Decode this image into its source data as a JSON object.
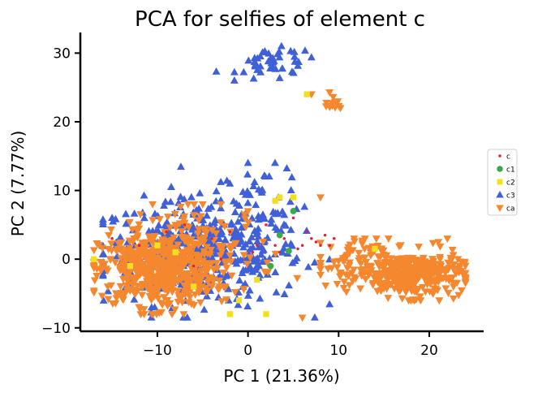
{
  "chart_data": {
    "type": "scatter",
    "title": "PCA for selfies of element c",
    "xlabel": "PC 1 (21.36%)",
    "ylabel": "PC 2 (7.77%)",
    "xlim": [
      -18.5,
      26
    ],
    "ylim": [
      -10.5,
      33
    ],
    "xticks": [
      -10,
      0,
      10,
      20
    ],
    "yticks": [
      -10,
      0,
      10,
      20,
      30
    ],
    "xtick_labels": [
      "−10",
      "0",
      "10",
      "20"
    ],
    "ytick_labels": [
      "−10",
      "0",
      "10",
      "20",
      "30"
    ],
    "grid": false,
    "legend_position": "right",
    "series": [
      {
        "name": "c",
        "marker": "dot",
        "color": "#e0203a",
        "points": [
          [
            -15,
            3
          ],
          [
            -12,
            2
          ],
          [
            -9,
            4
          ],
          [
            -7,
            5
          ],
          [
            -4,
            3
          ],
          [
            -2,
            4
          ],
          [
            1,
            2
          ],
          [
            2,
            5
          ],
          [
            3,
            2
          ],
          [
            4,
            3
          ],
          [
            5,
            6
          ],
          [
            6,
            2
          ],
          [
            6.5,
            4
          ],
          [
            7,
            3
          ],
          [
            7.5,
            2.5
          ],
          [
            8,
            2
          ],
          [
            8.5,
            3.5
          ],
          [
            9,
            2
          ],
          [
            9.5,
            3
          ],
          [
            5.5,
            1.5
          ],
          [
            3.5,
            1
          ],
          [
            -6,
            -1
          ],
          [
            -3,
            0
          ],
          [
            0.5,
            1
          ]
        ]
      },
      {
        "name": "c1",
        "marker": "circle",
        "color": "#3aab4b",
        "points": [
          [
            3.5,
            3.5
          ],
          [
            4.5,
            1.2
          ],
          [
            5,
            7
          ],
          [
            2.5,
            -1
          ]
        ]
      },
      {
        "name": "c2",
        "marker": "square",
        "color": "#f2e01c",
        "points": [
          [
            -17,
            0
          ],
          [
            -13,
            -1
          ],
          [
            -10,
            2
          ],
          [
            -6,
            -4
          ],
          [
            -2,
            -8
          ],
          [
            2,
            -8
          ],
          [
            3,
            8.5
          ],
          [
            3.5,
            9
          ],
          [
            5,
            9
          ],
          [
            6.5,
            24
          ],
          [
            14,
            1.5
          ],
          [
            -1,
            -6
          ],
          [
            1,
            -3
          ],
          [
            -8,
            1
          ]
        ]
      },
      {
        "name": "c3",
        "marker": "triangle",
        "color": "#4060d8",
        "clusters": [
          {
            "x": -5,
            "y": 1,
            "sx": 5.5,
            "sy": 3.8,
            "n": 420,
            "xmin": -16,
            "xmax": 9,
            "ymin": -8.5,
            "ymax": 14
          },
          {
            "x": 3,
            "y": 28.5,
            "sx": 2.2,
            "sy": 1.3,
            "n": 45,
            "xmin": -1.5,
            "xmax": 7,
            "ymin": 26,
            "ymax": 31
          },
          {
            "x": 1.5,
            "y": 9,
            "sx": 2.5,
            "sy": 2.2,
            "n": 40,
            "xmin": -3,
            "xmax": 8,
            "ymin": 5,
            "ymax": 14
          }
        ],
        "points": [
          [
            -3.5,
            27.3
          ],
          [
            0,
            14
          ],
          [
            -15,
            6
          ],
          [
            -2,
            11
          ]
        ]
      },
      {
        "name": "ca",
        "marker": "triangle-down",
        "color": "#f5872f",
        "clusters": [
          {
            "x": -10,
            "y": -1.5,
            "sx": 3.2,
            "sy": 2.6,
            "n": 520,
            "xmin": -17,
            "xmax": -2,
            "ymin": -8,
            "ymax": 5
          },
          {
            "x": -5,
            "y": 1,
            "sx": 4,
            "sy": 3.5,
            "n": 130,
            "xmin": -14,
            "xmax": 7,
            "ymin": -8,
            "ymax": 8
          },
          {
            "x": 18,
            "y": -2.3,
            "sx": 2.8,
            "sy": 1.6,
            "n": 340,
            "xmin": 10,
            "xmax": 24,
            "ymin": -6,
            "ymax": 4
          },
          {
            "x": 11.5,
            "y": -0.5,
            "sx": 2.0,
            "sy": 1.8,
            "n": 80,
            "xmin": 8,
            "xmax": 16,
            "ymin": -4,
            "ymax": 3
          },
          {
            "x": 9.3,
            "y": 22.8,
            "sx": 0.6,
            "sy": 0.6,
            "n": 12,
            "xmin": 8,
            "xmax": 10.5,
            "ymin": 22,
            "ymax": 24
          }
        ],
        "points": [
          [
            7,
            24
          ],
          [
            9,
            24.3
          ],
          [
            6,
            -8.5
          ],
          [
            -17,
            -1
          ],
          [
            22,
            3
          ],
          [
            23,
            -2
          ],
          [
            24,
            -2
          ],
          [
            21,
            2.5
          ],
          [
            8,
            9
          ],
          [
            0,
            7
          ],
          [
            -5,
            8
          ],
          [
            -3,
            8
          ],
          [
            -8,
            5
          ]
        ]
      }
    ]
  }
}
